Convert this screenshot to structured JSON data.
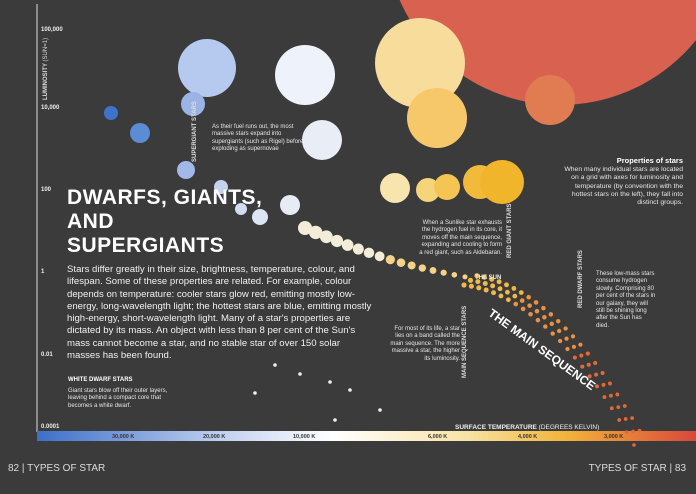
{
  "header": {
    "title": "DWARFS, GIANTS, AND SUPERGIANTS",
    "body": "Stars differ greatly in their size, brightness, temperature, colour, and lifespan. Some of these properties are related. For example, colour depends on temperature: cooler stars glow red, emitting mostly low-energy, long-wavelength light; the hottest stars are blue, emitting mostly high-energy, short-wavelength light. Many of a star's properties are dictated by its mass. An object with less than 8 per cent of the Sun's mass cannot become a star, and no stable star of over 150 solar masses has been found."
  },
  "axis": {
    "luminosity_label": "LUMINOSITY",
    "luminosity_unit": "(SUN=1)",
    "luminosity_ticks": [
      "100,000",
      "10,000",
      "100",
      "1",
      "0.01",
      "0.0001"
    ],
    "temperature_label": "SURFACE TEMPERATURE",
    "temperature_unit": "(DEGREES KELVIN)",
    "temperature_ticks": [
      "30,000 K",
      "20,000 K",
      "10,000 K",
      "6,000 K",
      "4,000 K",
      "3,000 K"
    ]
  },
  "annotations": {
    "supergiants": {
      "label": "SUPERGIANT STARS",
      "text": "As their fuel runs out, the most massive stars expand into supergiants (such as Rigel) before exploding as supernovae"
    },
    "properties": {
      "heading": "Properties of stars",
      "text": "When many individual stars are located on a grid with axes for luminosity and temperature (by convention with the hottest stars on the left), they fall into distinct groups."
    },
    "red_giants": {
      "label": "RED GIANT STARS",
      "text": "When a Sunlike star exhausts the hydrogen fuel in its core, it moves off the main sequence, expanding and cooling to form a red giant, such as Aldebaran."
    },
    "sun": {
      "label": "THE SUN"
    },
    "red_dwarfs": {
      "label": "RED DWARF STARS",
      "text": "These low-mass stars consume hydrogen slowly. Comprising 80 per cent of the stars in our galaxy, they will still be shining long after the Sun has died."
    },
    "main_sequence": {
      "band_label": "THE MAIN SEQUENCE",
      "label": "MAIN SEQUENCE STARS",
      "text": "For most of its life, a star lies on a band called the main sequence. The more massive a star, the higher its luminosity."
    },
    "white_dwarfs": {
      "label": "WHITE DWARF STARS",
      "text": "Giant stars blow off their outer layers, leaving behind a compact core that becomes a white dwarf."
    }
  },
  "footer": {
    "left": "82 | TYPES OF STAR",
    "right": "TYPES OF STAR | 83"
  }
}
